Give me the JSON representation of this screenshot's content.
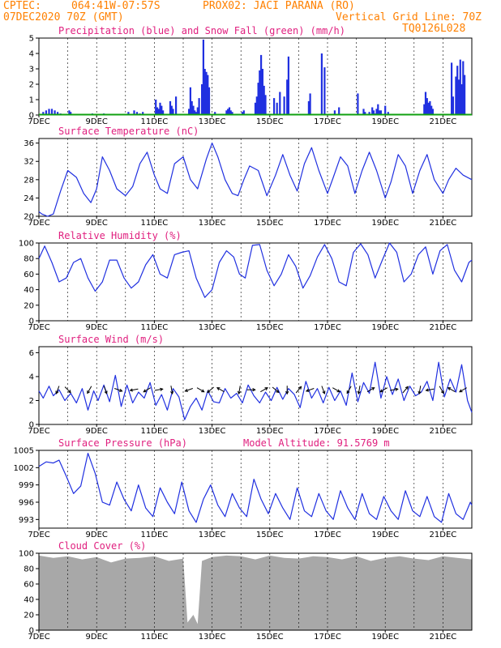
{
  "header": {
    "line1_left": "CPTEC:",
    "line1_coords": "064:41W-07:57S",
    "line1_station": "PROX02: JACI PARANA (RO)",
    "line2_left": "07DEC2020 70Z (GMT)",
    "line2_right": "Vertical Grid Line: 70Z",
    "line3_right": "TQ0126L028"
  },
  "x_axis_dates": [
    "7DEC",
    "9DEC",
    "11DEC",
    "13DEC",
    "15DEC",
    "17DEC",
    "19DEC",
    "21DEC"
  ],
  "colors": {
    "header": "#ff8000",
    "title": "#e0207f",
    "line": "#2030e0",
    "snow": "#10a010",
    "cloud": "#a8a8a8",
    "arrow": "#000000"
  },
  "chart_data": [
    {
      "id": "precip",
      "type": "bar",
      "title": "Precipitation (blue) and Snow Fall (green) (mm/h)",
      "ylim": [
        0,
        5
      ],
      "yticks": [
        0,
        1,
        2,
        3,
        4,
        5
      ],
      "x_days": [
        0,
        15
      ],
      "series": [
        {
          "name": "Precipitation",
          "x": [
            0.15,
            0.25,
            0.35,
            0.45,
            0.55,
            0.65,
            0.75,
            1.05,
            1.1,
            1.85,
            2.25,
            3.1,
            3.3,
            3.4,
            3.5,
            3.6,
            4.05,
            4.1,
            4.15,
            4.2,
            4.25,
            4.3,
            4.55,
            4.6,
            4.65,
            4.75,
            5.2,
            5.25,
            5.3,
            5.35,
            5.4,
            5.45,
            5.5,
            5.55,
            5.65,
            5.7,
            5.75,
            5.8,
            5.85,
            5.9,
            6.1,
            6.5,
            6.55,
            6.6,
            6.65,
            6.7,
            7.05,
            7.1,
            7.5,
            7.55,
            7.6,
            7.65,
            7.7,
            7.75,
            7.8,
            7.85,
            8.15,
            8.25,
            8.35,
            8.5,
            8.6,
            8.65,
            9.35,
            9.4,
            9.8,
            9.9,
            10.25,
            10.4,
            11.05,
            11.25,
            11.3,
            11.45,
            11.55,
            11.6,
            11.65,
            11.7,
            11.75,
            11.8,
            11.85,
            12.0,
            12.1,
            13.35,
            13.4,
            13.45,
            13.5,
            13.55,
            13.6,
            13.65,
            14.3,
            14.35,
            14.45,
            14.5,
            14.55,
            14.6,
            14.65,
            14.7,
            14.75
          ],
          "values": [
            0.2,
            0.3,
            0.4,
            0.4,
            0.3,
            0.2,
            0.1,
            0.3,
            0.2,
            0.1,
            0.1,
            0.2,
            0.3,
            0.2,
            0.1,
            0.2,
            1.0,
            0.5,
            0.4,
            0.8,
            0.6,
            0.3,
            0.9,
            0.6,
            0.4,
            1.2,
            0.4,
            1.8,
            0.9,
            0.6,
            0.3,
            0.2,
            0.5,
            1.1,
            2.0,
            4.9,
            3.0,
            2.8,
            2.6,
            1.8,
            0.2,
            0.3,
            0.4,
            0.5,
            0.3,
            0.2,
            0.2,
            0.3,
            0.8,
            1.2,
            2.1,
            2.9,
            3.9,
            3.0,
            1.9,
            1.3,
            1.1,
            0.8,
            1.5,
            1.2,
            2.3,
            3.8,
            0.9,
            1.4,
            4.0,
            3.1,
            0.3,
            0.5,
            1.4,
            0.4,
            0.2,
            0.2,
            0.5,
            0.3,
            0.1,
            0.4,
            0.7,
            0.3,
            0.3,
            0.6,
            0.2,
            0.7,
            1.5,
            1.1,
            0.8,
            0.9,
            0.6,
            0.4,
            3.4,
            1.2,
            2.5,
            3.2,
            2.3,
            3.6,
            2.0,
            3.5,
            2.6
          ]
        },
        {
          "name": "Snow Fall",
          "x": [
            0.0,
            15.0
          ],
          "values": [
            0,
            0
          ]
        }
      ]
    },
    {
      "id": "temperature",
      "type": "line",
      "title": "Surface Temperature (nC)",
      "ylim": [
        20,
        37
      ],
      "yticks": [
        20,
        24,
        28,
        32,
        36
      ],
      "x_days": [
        0,
        15
      ],
      "series": [
        {
          "name": "Surface Temperature",
          "x": [
            0,
            0.1,
            0.3,
            0.5,
            0.75,
            1.0,
            1.3,
            1.55,
            1.8,
            2.0,
            2.2,
            2.45,
            2.7,
            3.0,
            3.25,
            3.5,
            3.75,
            4.0,
            4.2,
            4.45,
            4.7,
            5.0,
            5.25,
            5.5,
            5.8,
            6.0,
            6.2,
            6.45,
            6.7,
            6.9,
            7.1,
            7.3,
            7.6,
            7.9,
            8.2,
            8.45,
            8.7,
            8.95,
            9.2,
            9.45,
            9.7,
            10.0,
            10.2,
            10.45,
            10.7,
            10.95,
            11.2,
            11.45,
            11.7,
            12.0,
            12.2,
            12.45,
            12.7,
            12.95,
            13.2,
            13.45,
            13.7,
            14.0,
            14.2,
            14.45,
            14.7,
            15.0
          ],
          "values": [
            21.0,
            20.5,
            20.0,
            20.5,
            25.5,
            30.0,
            28.5,
            25.0,
            23.0,
            26.0,
            33.0,
            30.0,
            26.0,
            24.5,
            26.5,
            31.5,
            34.0,
            29.0,
            26.0,
            25.0,
            31.5,
            33.0,
            28.0,
            26.0,
            32.5,
            36.0,
            33.0,
            28.0,
            25.0,
            24.5,
            28.0,
            31.0,
            30.0,
            24.5,
            29.0,
            33.5,
            29.0,
            25.5,
            31.5,
            35.0,
            30.0,
            25.0,
            28.5,
            33.0,
            31.0,
            25.0,
            30.0,
            34.0,
            30.0,
            24.0,
            27.5,
            33.5,
            31.0,
            25.0,
            30.0,
            33.5,
            28.0,
            25.0,
            28.0,
            30.5,
            29.0,
            28.0
          ]
        }
      ]
    },
    {
      "id": "humidity",
      "type": "line",
      "title": "Relative Humidity (%)",
      "ylim": [
        0,
        100
      ],
      "yticks": [
        0,
        20,
        40,
        60,
        80,
        100
      ],
      "x_days": [
        0,
        15
      ],
      "series": [
        {
          "name": "Relative Humidity",
          "x": [
            0,
            0.2,
            0.45,
            0.7,
            0.95,
            1.2,
            1.45,
            1.7,
            1.95,
            2.2,
            2.45,
            2.7,
            2.95,
            3.2,
            3.45,
            3.7,
            3.95,
            4.2,
            4.45,
            4.7,
            4.95,
            5.2,
            5.45,
            5.75,
            6.0,
            6.25,
            6.5,
            6.75,
            6.95,
            7.15,
            7.4,
            7.65,
            7.9,
            8.15,
            8.4,
            8.65,
            8.9,
            9.15,
            9.4,
            9.65,
            9.9,
            10.15,
            10.4,
            10.65,
            10.9,
            11.15,
            11.4,
            11.65,
            11.9,
            12.15,
            12.4,
            12.65,
            12.9,
            13.15,
            13.4,
            13.65,
            13.9,
            14.15,
            14.4,
            14.65,
            14.9,
            15.0
          ],
          "values": [
            80,
            96,
            75,
            50,
            55,
            75,
            80,
            55,
            38,
            50,
            78,
            78,
            55,
            42,
            50,
            72,
            85,
            60,
            55,
            85,
            88,
            90,
            55,
            30,
            40,
            75,
            90,
            82,
            60,
            55,
            97,
            98,
            65,
            45,
            60,
            85,
            70,
            42,
            58,
            82,
            98,
            80,
            50,
            45,
            88,
            99,
            85,
            55,
            78,
            100,
            88,
            50,
            60,
            85,
            95,
            60,
            90,
            98,
            65,
            50,
            75,
            78
          ]
        }
      ]
    },
    {
      "id": "wind",
      "type": "line",
      "title": "Surface Wind (m/s)",
      "ylim": [
        0,
        6.5
      ],
      "yticks": [
        0,
        2,
        4,
        6
      ],
      "x_days": [
        0,
        15
      ],
      "series": [
        {
          "name": "Surface Wind",
          "x": [
            0,
            0.15,
            0.35,
            0.5,
            0.7,
            0.9,
            1.1,
            1.3,
            1.5,
            1.7,
            1.9,
            2.05,
            2.25,
            2.45,
            2.65,
            2.85,
            3.05,
            3.25,
            3.45,
            3.65,
            3.85,
            4.05,
            4.25,
            4.45,
            4.65,
            4.85,
            5.05,
            5.25,
            5.45,
            5.65,
            5.85,
            6.05,
            6.25,
            6.45,
            6.65,
            6.85,
            7.05,
            7.25,
            7.45,
            7.65,
            7.85,
            8.05,
            8.25,
            8.45,
            8.65,
            8.85,
            9.05,
            9.25,
            9.45,
            9.65,
            9.85,
            10.05,
            10.25,
            10.45,
            10.65,
            10.85,
            11.05,
            11.25,
            11.45,
            11.65,
            11.85,
            12.05,
            12.25,
            12.45,
            12.65,
            12.85,
            13.05,
            13.25,
            13.45,
            13.65,
            13.85,
            14.05,
            14.25,
            14.45,
            14.65,
            14.85,
            15.0
          ],
          "values": [
            2.8,
            2.2,
            3.2,
            2.4,
            2.9,
            2.0,
            2.6,
            1.8,
            3.0,
            1.2,
            2.8,
            2.0,
            3.3,
            1.9,
            4.1,
            1.5,
            3.3,
            1.8,
            2.7,
            2.2,
            3.5,
            1.6,
            2.5,
            1.2,
            3.0,
            2.3,
            0.4,
            1.5,
            2.2,
            1.2,
            2.8,
            1.9,
            1.8,
            3.0,
            2.2,
            2.6,
            1.8,
            3.3,
            2.4,
            1.8,
            2.7,
            2.0,
            3.1,
            2.1,
            3.0,
            2.5,
            1.4,
            3.6,
            2.2,
            3.0,
            1.8,
            3.1,
            2.0,
            2.8,
            1.6,
            4.3,
            1.9,
            3.5,
            2.6,
            5.2,
            2.2,
            4.0,
            2.5,
            3.8,
            2.0,
            3.2,
            2.4,
            2.7,
            3.6,
            2.0,
            5.2,
            2.3,
            3.8,
            2.7,
            5.0,
            2.0,
            1.0
          ]
        }
      ],
      "arrows_x": [
        0.65,
        1.0,
        1.75,
        2.3,
        2.75,
        3.3,
        3.75,
        4.15,
        4.6,
        5.2,
        5.6,
        5.95,
        6.3,
        6.95,
        7.35,
        7.8,
        8.2,
        8.6,
        9.0,
        9.4,
        9.85,
        10.3,
        10.75,
        11.1,
        11.5,
        11.95,
        12.3,
        12.7,
        13.2,
        13.55,
        13.95,
        14.3,
        14.7
      ],
      "arrows_dir": [
        200,
        135,
        210,
        160,
        110,
        260,
        240,
        80,
        170,
        250,
        120,
        230,
        300,
        190,
        90,
        60,
        130,
        180,
        40,
        250,
        160,
        120,
        210,
        190,
        60,
        240,
        80,
        40,
        190,
        260,
        150,
        300,
        240
      ]
    },
    {
      "id": "pressure",
      "type": "line",
      "title": "Surface Pressure (hPa)",
      "annotation": "Model Altitude: 91.5769 m",
      "ylim": [
        991.5,
        1005
      ],
      "yticks": [
        993,
        996,
        999,
        1002,
        1005
      ],
      "x_days": [
        0,
        15
      ],
      "series": [
        {
          "name": "Surface Pressure",
          "x": [
            0,
            0.25,
            0.5,
            0.7,
            0.95,
            1.2,
            1.45,
            1.7,
            1.95,
            2.2,
            2.45,
            2.7,
            2.95,
            3.2,
            3.45,
            3.7,
            3.95,
            4.2,
            4.45,
            4.7,
            4.95,
            5.2,
            5.45,
            5.7,
            5.95,
            6.2,
            6.45,
            6.7,
            6.95,
            7.2,
            7.45,
            7.7,
            7.95,
            8.2,
            8.45,
            8.7,
            8.95,
            9.2,
            9.45,
            9.7,
            9.95,
            10.2,
            10.45,
            10.7,
            10.95,
            11.2,
            11.45,
            11.7,
            11.95,
            12.2,
            12.45,
            12.7,
            12.95,
            13.2,
            13.45,
            13.7,
            13.95,
            14.2,
            14.45,
            14.7,
            14.95,
            15.0
          ],
          "values": [
            1002.2,
            1003.0,
            1002.8,
            1003.3,
            1000.5,
            997.5,
            998.8,
            1004.5,
            1001.0,
            996.0,
            995.5,
            999.5,
            996.5,
            994.5,
            999.0,
            995.0,
            993.5,
            998.5,
            996.0,
            994.0,
            999.5,
            994.5,
            992.5,
            996.5,
            999.0,
            995.5,
            993.5,
            997.5,
            995.0,
            993.5,
            1000.0,
            996.5,
            994.0,
            997.5,
            995.0,
            993.0,
            998.5,
            994.5,
            993.5,
            997.5,
            994.5,
            993.0,
            998.0,
            995.0,
            993.0,
            997.5,
            994.0,
            993.0,
            997.0,
            994.5,
            993.0,
            998.0,
            994.5,
            993.5,
            997.0,
            993.5,
            992.5,
            997.5,
            994.0,
            993.0,
            996.0,
            995.5
          ]
        }
      ]
    },
    {
      "id": "cloud",
      "type": "area",
      "title": "Cloud Cover (%)",
      "ylim": [
        0,
        100
      ],
      "yticks": [
        0,
        20,
        40,
        60,
        80,
        100
      ],
      "x_days": [
        0,
        15
      ],
      "series": [
        {
          "name": "Cloud Cover",
          "x": [
            0,
            0.5,
            1.0,
            1.5,
            2.0,
            2.5,
            3.0,
            3.5,
            4.0,
            4.5,
            5.0,
            5.15,
            5.35,
            5.5,
            5.65,
            6.0,
            6.5,
            7.0,
            7.5,
            8.0,
            8.5,
            9.0,
            9.5,
            10.0,
            10.5,
            11.0,
            11.5,
            12.0,
            12.5,
            13.0,
            13.5,
            14.0,
            14.5,
            15.0
          ],
          "values": [
            97,
            94,
            96,
            92,
            95,
            88,
            93,
            94,
            96,
            90,
            93,
            10,
            20,
            8,
            90,
            95,
            97,
            96,
            92,
            97,
            94,
            93,
            96,
            95,
            92,
            96,
            90,
            94,
            96,
            93,
            91,
            96,
            94,
            92
          ]
        }
      ]
    }
  ]
}
